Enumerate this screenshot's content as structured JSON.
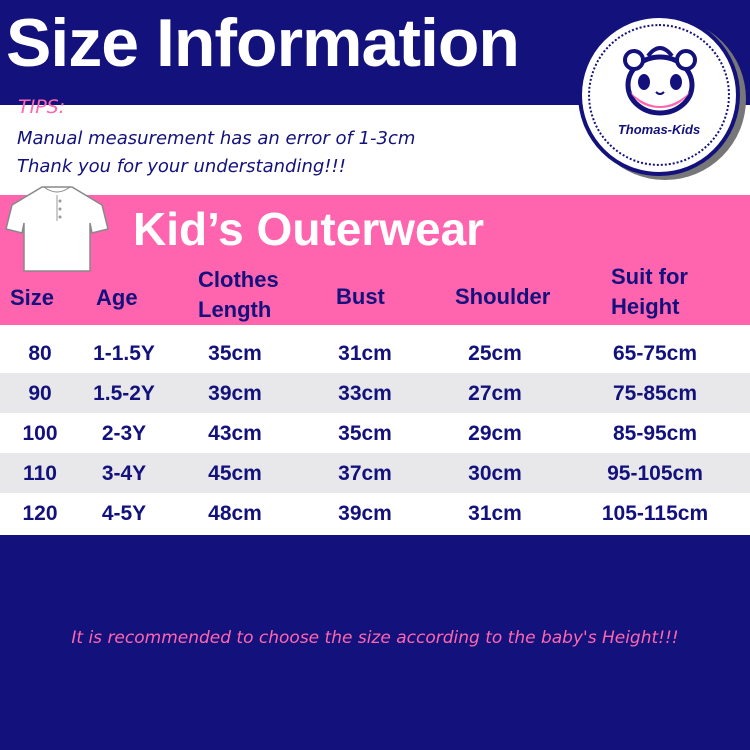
{
  "header": {
    "title": "Size Information"
  },
  "logo": {
    "brand": "Thomas-Kids"
  },
  "tips": {
    "label": "TIPS:",
    "line1": "Manual measurement has an error of 1-3cm",
    "line2": "Thank you for your understanding!!!"
  },
  "section": {
    "title": "Kid’s Outerwear",
    "icon": "t-shirt-icon"
  },
  "table": {
    "headers": [
      "Size",
      "Age",
      "Clothes\nLength",
      "Bust",
      "Shoulder",
      "Suit for\nHeight"
    ],
    "rows": [
      [
        "80",
        "1-1.5Y",
        "35cm",
        "31cm",
        "25cm",
        "65-75cm"
      ],
      [
        "90",
        "1.5-2Y",
        "39cm",
        "33cm",
        "27cm",
        "75-85cm"
      ],
      [
        "100",
        "2-3Y",
        "43cm",
        "35cm",
        "29cm",
        "85-95cm"
      ],
      [
        "110",
        "3-4Y",
        "45cm",
        "37cm",
        "30cm",
        "95-105cm"
      ],
      [
        "120",
        "4-5Y",
        "48cm",
        "39cm",
        "31cm",
        "105-115cm"
      ]
    ]
  },
  "footer": {
    "note": "It is recommended to choose the size according to the baby's Height!!!"
  },
  "colors": {
    "navy": "#13117c",
    "pink": "#ff64ae",
    "row_alt": "#e8e8ea"
  }
}
